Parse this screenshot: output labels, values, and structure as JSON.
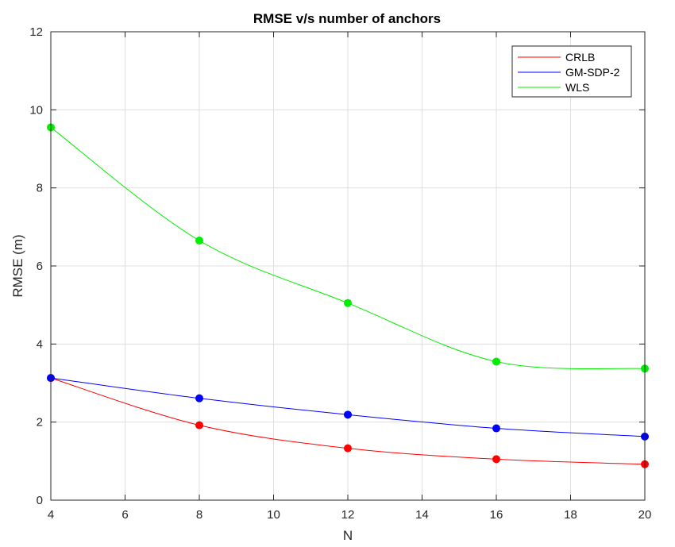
{
  "chart_data": {
    "type": "line",
    "title": "RMSE v/s number of anchors",
    "xlabel": "N",
    "ylabel": "RMSE (m)",
    "xlim": [
      4,
      20
    ],
    "ylim": [
      0,
      12
    ],
    "xticks": [
      4,
      6,
      8,
      10,
      12,
      14,
      16,
      18,
      20
    ],
    "yticks": [
      0,
      2,
      4,
      6,
      8,
      10,
      12
    ],
    "grid": true,
    "legend_position": "top-right",
    "x": [
      4,
      8,
      12,
      16,
      20
    ],
    "series": [
      {
        "name": "CRLB",
        "color": "#ff0000",
        "values": [
          3.13,
          1.92,
          1.33,
          1.05,
          0.92
        ]
      },
      {
        "name": "GM-SDP-2",
        "color": "#0000ff",
        "values": [
          3.13,
          2.61,
          2.19,
          1.84,
          1.63
        ]
      },
      {
        "name": "WLS",
        "color": "#00ee00",
        "values": [
          9.55,
          6.65,
          5.05,
          3.55,
          3.37
        ]
      }
    ]
  }
}
